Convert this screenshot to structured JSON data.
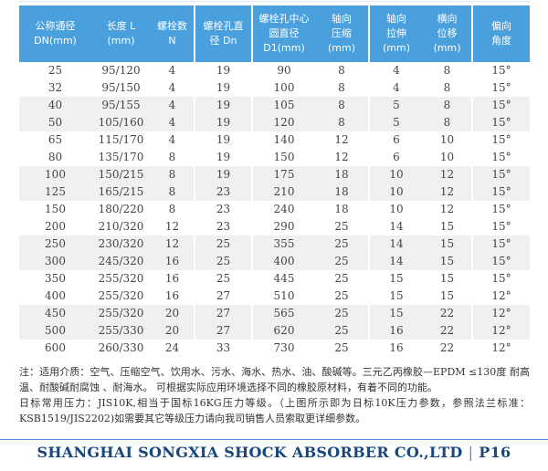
{
  "colors": {
    "header_blue": "#4a9fdd",
    "row_alt_gray": "#f0f0f0",
    "footer_navy": "#17477f",
    "rule_blue": "#4a90d2"
  },
  "table": {
    "columns": [
      {
        "lines": [
          "公称通径",
          "DN(mm)"
        ]
      },
      {
        "lines": [
          "长度 L",
          "(mm)"
        ]
      },
      {
        "lines": [
          "螺栓数",
          "N"
        ]
      },
      {
        "lines": [
          "螺栓孔直",
          "径 Dn"
        ]
      },
      {
        "lines": [
          "螺栓孔中心",
          "圆直径",
          "D1(mm)"
        ]
      },
      {
        "lines": [
          "轴向",
          "压缩",
          "(mm)"
        ]
      },
      {
        "lines": [
          "轴向",
          "拉伸",
          "(mm)"
        ]
      },
      {
        "lines": [
          "横向",
          "位移",
          "(mm)"
        ]
      },
      {
        "lines": [
          "偏向",
          "角度"
        ]
      }
    ],
    "rows": [
      [
        "25",
        "95/120",
        "4",
        "19",
        "90",
        "8",
        "4",
        "8",
        "15°"
      ],
      [
        "32",
        "95/150",
        "4",
        "19",
        "100",
        "8",
        "4",
        "8",
        "15°"
      ],
      [
        "40",
        "95/155",
        "4",
        "19",
        "105",
        "8",
        "5",
        "8",
        "15°"
      ],
      [
        "50",
        "105/160",
        "4",
        "19",
        "120",
        "8",
        "5",
        "8",
        "15°"
      ],
      [
        "65",
        "115/170",
        "4",
        "19",
        "140",
        "12",
        "6",
        "10",
        "15°"
      ],
      [
        "80",
        "135/170",
        "8",
        "19",
        "150",
        "12",
        "6",
        "10",
        "15°"
      ],
      [
        "100",
        "150/215",
        "8",
        "19",
        "175",
        "18",
        "10",
        "12",
        "15°"
      ],
      [
        "125",
        "165/215",
        "8",
        "23",
        "210",
        "18",
        "10",
        "12",
        "15°"
      ],
      [
        "150",
        "180/220",
        "8",
        "23",
        "240",
        "18",
        "10",
        "12",
        "15°"
      ],
      [
        "200",
        "210/320",
        "12",
        "23",
        "290",
        "25",
        "14",
        "15",
        "15°"
      ],
      [
        "250",
        "230/320",
        "12",
        "25",
        "355",
        "25",
        "14",
        "15",
        "15°"
      ],
      [
        "300",
        "245/320",
        "16",
        "25",
        "400",
        "25",
        "14",
        "15",
        "15°"
      ],
      [
        "350",
        "255/320",
        "16",
        "25",
        "445",
        "25",
        "15",
        "15",
        "15°"
      ],
      [
        "400",
        "255/320",
        "16",
        "27",
        "510",
        "25",
        "15",
        "15",
        "12°"
      ],
      [
        "450",
        "255/320",
        "20",
        "27",
        "565",
        "25",
        "15",
        "22",
        "12°"
      ],
      [
        "500",
        "255/330",
        "20",
        "27",
        "620",
        "25",
        "16",
        "22",
        "12°"
      ],
      [
        "600",
        "260/330",
        "24",
        "33",
        "730",
        "25",
        "16",
        "22",
        "12°"
      ]
    ]
  },
  "notes": [
    "注：适用介质：空气、压缩空气、饮用水、污水、海水、热水、油、酸碱等。三元乙丙橡胶—EPDM ≤130度 耐高温、耐酸碱耐腐蚀 、耐海水。 可根据实际应用环境选择不同的橡胶原材料，有着不同的功能。",
    "日标常用压力：JIS10K,相当于国标16KG压力等级。（上图所示即为日标10K压力参数，参照法兰标准：KSB1519/JIS2202)如需要其它等级压力请向我司销售人员索取更详细参数。"
  ],
  "footer": {
    "company": "SHANGHAI SONGXIA SHOCK ABSORBER CO.,LTD",
    "separator": "|",
    "page": "P16"
  }
}
